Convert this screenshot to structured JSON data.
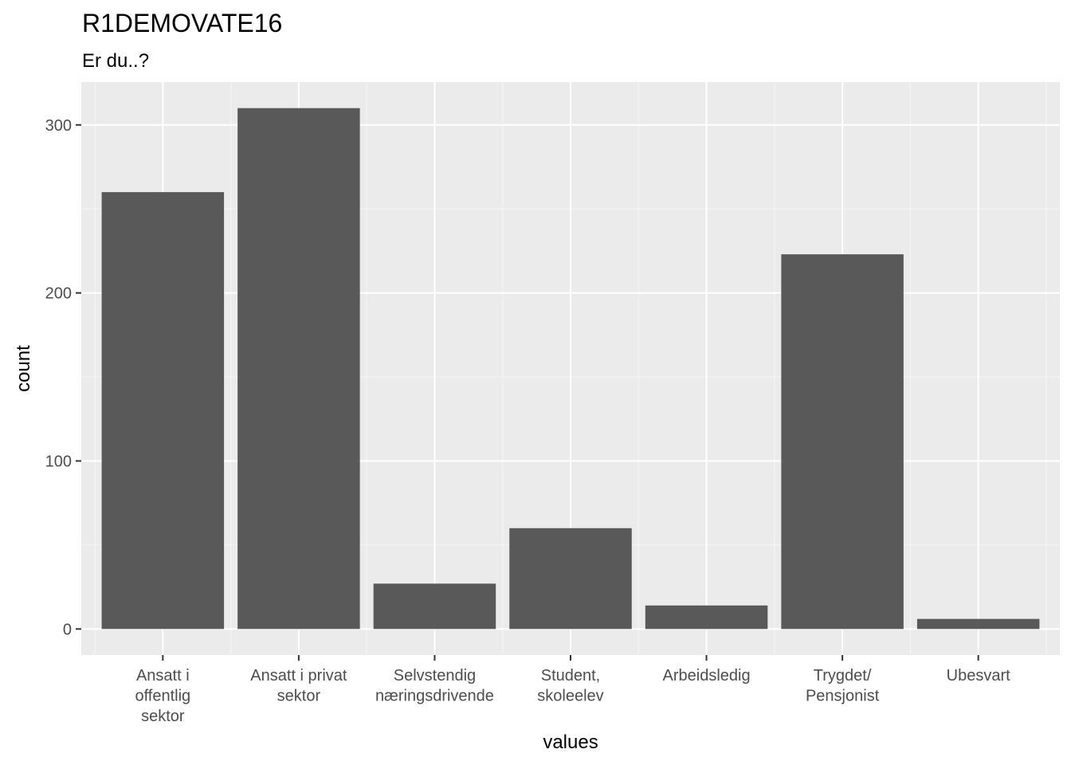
{
  "chart_data": {
    "type": "bar",
    "title": "R1DEMOVATE16",
    "subtitle": "Er du..?",
    "xlabel": "values",
    "ylabel": "count",
    "categories": [
      [
        "Ansatt i",
        "offentlig",
        "sektor"
      ],
      [
        "Ansatt i privat",
        "sektor"
      ],
      [
        "Selvstendig",
        "næringsdrivende"
      ],
      [
        "Student,",
        "skoleelev"
      ],
      [
        "Arbeidsledig"
      ],
      [
        "Trygdet/",
        "Pensjonist"
      ],
      [
        "Ubesvart"
      ]
    ],
    "values": [
      260,
      310,
      27,
      60,
      14,
      223,
      6
    ],
    "ylim": [
      -15.5,
      325.5
    ],
    "yticks": [
      0,
      100,
      200,
      300
    ],
    "grid": true,
    "colors": {
      "bar": "#595959",
      "panel": "#ebebeb",
      "grid_major": "#ffffff",
      "grid_minor": "#f5f5f5",
      "tick": "#333333"
    }
  }
}
